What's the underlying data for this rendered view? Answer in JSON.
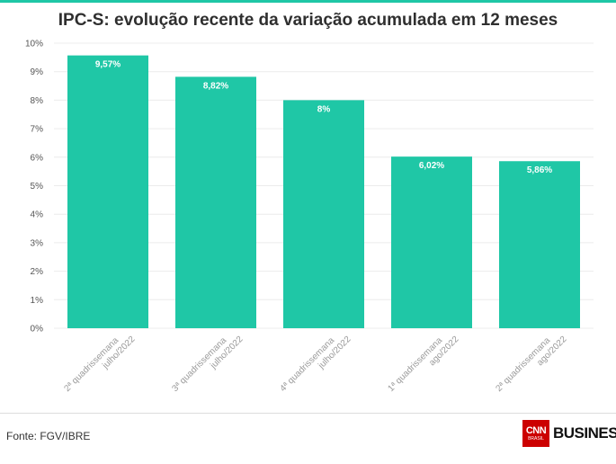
{
  "title": "IPC-S: evolução recente da variação acumulada em 12 meses",
  "source": "Fonte: FGV/IBRE",
  "logo": {
    "mark": "CNN",
    "mark_sub": "BRASIL",
    "word": "BUSINESS"
  },
  "colors": {
    "bar": "#1fc7a6",
    "accent": "#1fc7a6",
    "logo_red": "#cc0000"
  },
  "chart_data": {
    "type": "bar",
    "categories": [
      [
        "2ª quadrissemana",
        "julho/2022"
      ],
      [
        "3ª quadrissemana",
        "julho/2022"
      ],
      [
        "4ª quadrissemana",
        "julho/2022"
      ],
      [
        "1ª quadrissemana",
        "ago/2022"
      ],
      [
        "2ª quadrissemana",
        "ago/2022"
      ]
    ],
    "values": [
      9.57,
      8.82,
      8,
      6.02,
      5.86
    ],
    "data_labels": [
      "9,57%",
      "8,82%",
      "8%",
      "6,02%",
      "5,86%"
    ],
    "ylim": [
      0,
      10
    ],
    "yticks": [
      "0%",
      "1%",
      "2%",
      "3%",
      "4%",
      "5%",
      "6%",
      "7%",
      "8%",
      "9%",
      "10%"
    ],
    "grid": true,
    "legend": "none"
  }
}
